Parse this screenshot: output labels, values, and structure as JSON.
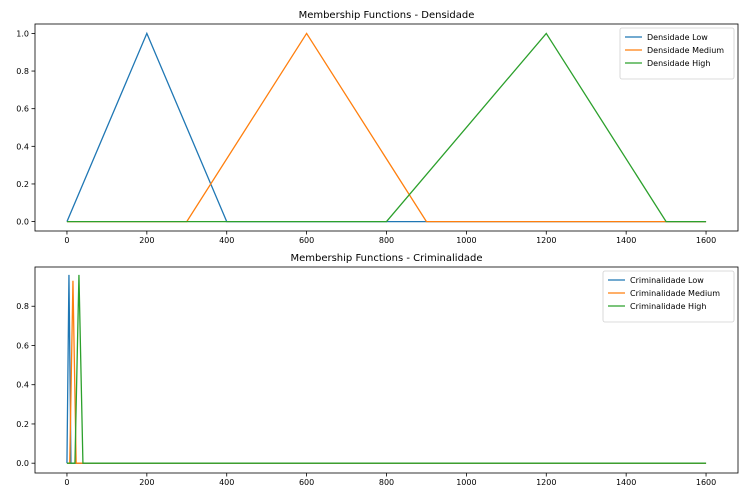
{
  "chart_data": [
    {
      "type": "line",
      "title": "Membership Functions - Densidade",
      "xlabel": "",
      "ylabel": "",
      "xlim": [
        -80,
        1680
      ],
      "ylim": [
        -0.05,
        1.05
      ],
      "xticks": [
        0,
        200,
        400,
        600,
        800,
        1000,
        1200,
        1400,
        1600
      ],
      "yticks": [
        0.0,
        0.2,
        0.4,
        0.6,
        0.8,
        1.0
      ],
      "grid": false,
      "legend_position": "top-right",
      "series": [
        {
          "name": "Densidade Low",
          "color": "#1f77b4",
          "x": [
            0,
            200,
            400,
            1600
          ],
          "y": [
            0,
            1,
            0,
            0
          ]
        },
        {
          "name": "Densidade Medium",
          "color": "#ff7f0e",
          "x": [
            0,
            300,
            600,
            900,
            1600
          ],
          "y": [
            0,
            0,
            1,
            0,
            0
          ]
        },
        {
          "name": "Densidade High",
          "color": "#2ca02c",
          "x": [
            0,
            800,
            1200,
            1500,
            1600
          ],
          "y": [
            0,
            0,
            1,
            0,
            0
          ]
        }
      ]
    },
    {
      "type": "line",
      "title": "Membership Functions - Criminalidade",
      "xlabel": "",
      "ylabel": "",
      "xlim": [
        -80,
        1680
      ],
      "ylim": [
        -0.05,
        1.0
      ],
      "xticks": [
        0,
        200,
        400,
        600,
        800,
        1000,
        1200,
        1400,
        1600
      ],
      "yticks": [
        0.0,
        0.2,
        0.4,
        0.6,
        0.8
      ],
      "grid": false,
      "legend_position": "top-right",
      "series": [
        {
          "name": "Criminalidade Low",
          "color": "#1f77b4",
          "x": [
            0,
            5,
            10,
            1600
          ],
          "y": [
            0,
            0.96,
            0,
            0
          ]
        },
        {
          "name": "Criminalidade Medium",
          "color": "#ff7f0e",
          "x": [
            0,
            7,
            15,
            23,
            1600
          ],
          "y": [
            0,
            0,
            0.93,
            0,
            0
          ]
        },
        {
          "name": "Criminalidade High",
          "color": "#2ca02c",
          "x": [
            0,
            20,
            30,
            40,
            1600
          ],
          "y": [
            0,
            0,
            0.96,
            0,
            0
          ]
        }
      ]
    }
  ]
}
